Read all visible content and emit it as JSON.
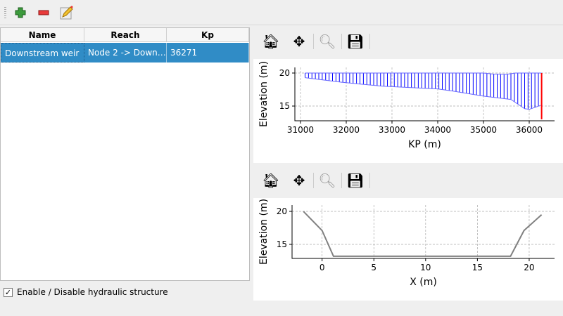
{
  "toolbar": {
    "items": [
      {
        "name": "add-icon"
      },
      {
        "name": "remove-icon"
      },
      {
        "name": "edit-icon"
      }
    ]
  },
  "table": {
    "columns": [
      "Name",
      "Reach",
      "Kp"
    ],
    "rows": [
      [
        "Downstream weir",
        "Node 2 -> Down…",
        "36271"
      ]
    ],
    "selected_color": "#308cc6"
  },
  "checkbox": {
    "label": "Enable / Disable hydraulic structure",
    "checked": true,
    "mark": "✓"
  },
  "plot_toolbar": {
    "buttons": [
      "home-icon",
      "pan-icon",
      "zoom-icon",
      "save-icon"
    ]
  },
  "chart_data": [
    {
      "type": "line",
      "xlabel": "KP (m)",
      "ylabel": "Elevation (m)",
      "xlim": [
        30877,
        36554
      ],
      "ylim": [
        12.77,
        20.85
      ],
      "xticks": [
        31000,
        32000,
        33000,
        34000,
        35000,
        36000
      ],
      "yticks": [
        15,
        20
      ],
      "grid": true,
      "water": [
        [
          31100,
          20
        ],
        [
          35000,
          20
        ],
        [
          35200,
          19.85
        ],
        [
          35500,
          19.8
        ],
        [
          35700,
          20
        ],
        [
          36270,
          20
        ]
      ],
      "bed": [
        [
          31100,
          19.3
        ],
        [
          31900,
          18.6
        ],
        [
          32800,
          18.0
        ],
        [
          34000,
          17.6
        ],
        [
          34300,
          17.3
        ],
        [
          35000,
          16.5
        ],
        [
          35600,
          16.0
        ],
        [
          35900,
          14.6
        ],
        [
          36000,
          14.5
        ],
        [
          36250,
          15.1
        ]
      ],
      "structure": {
        "kp": 36271,
        "from": 20,
        "to": 13
      },
      "fill_color": "#0000ff",
      "structure_color": "#ff0000"
    },
    {
      "type": "line",
      "xlabel": "X (m)",
      "ylabel": "Elevation (m)",
      "xlim": [
        -2.9,
        22.45
      ],
      "ylim": [
        12.87,
        20.96
      ],
      "xticks": [
        0,
        5,
        10,
        15,
        20
      ],
      "yticks": [
        15,
        20
      ],
      "grid": true,
      "points": [
        [
          -1.8,
          20
        ],
        [
          0,
          17.1
        ],
        [
          1.1,
          13.2
        ],
        [
          18.2,
          13.2
        ],
        [
          19.5,
          17.1
        ],
        [
          21.2,
          19.5
        ]
      ],
      "line_color": "#808080"
    }
  ]
}
